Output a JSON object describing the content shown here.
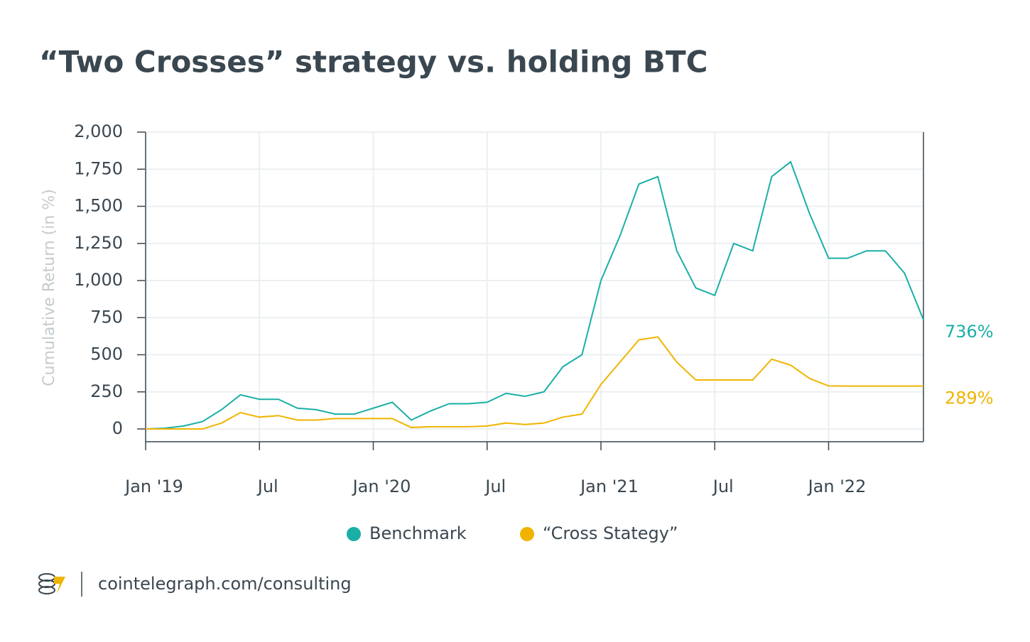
{
  "chart_data": {
    "type": "line",
    "title": "“Two Crosses” strategy vs. holding BTC",
    "y_label": "Cumulative Return (in %)",
    "x": [
      "2019-01",
      "2019-02",
      "2019-03",
      "2019-04",
      "2019-05",
      "2019-06",
      "2019-07",
      "2019-08",
      "2019-09",
      "2019-10",
      "2019-11",
      "2019-12",
      "2020-01",
      "2020-02",
      "2020-03",
      "2020-04",
      "2020-05",
      "2020-06",
      "2020-07",
      "2020-08",
      "2020-09",
      "2020-10",
      "2020-11",
      "2020-12",
      "2021-01",
      "2021-02",
      "2021-03",
      "2021-04",
      "2021-05",
      "2021-06",
      "2021-07",
      "2021-08",
      "2021-09",
      "2021-10",
      "2021-11",
      "2021-12",
      "2022-01",
      "2022-02",
      "2022-03",
      "2022-04",
      "2022-05",
      "2022-06"
    ],
    "series": [
      {
        "name": "Benchmark",
        "color": "#1aafa6",
        "end_label": "736%",
        "values": [
          0,
          5,
          20,
          50,
          130,
          230,
          200,
          200,
          140,
          130,
          100,
          100,
          140,
          180,
          60,
          120,
          170,
          170,
          180,
          240,
          220,
          250,
          420,
          500,
          1000,
          1300,
          1650,
          1700,
          1200,
          950,
          900,
          1250,
          1200,
          1700,
          1800,
          1450,
          1150,
          1150,
          1200,
          1200,
          1050,
          736
        ]
      },
      {
        "name": "“Cross Stategy”",
        "color": "#f0b400",
        "end_label": "289%",
        "values": [
          0,
          0,
          0,
          0,
          40,
          110,
          80,
          90,
          60,
          60,
          70,
          70,
          70,
          70,
          10,
          15,
          15,
          15,
          20,
          40,
          30,
          40,
          80,
          100,
          300,
          450,
          600,
          620,
          450,
          330,
          330,
          330,
          330,
          470,
          430,
          340,
          290,
          289,
          289,
          289,
          289,
          289
        ]
      }
    ],
    "xlim": [
      "2019-01",
      "2022-06"
    ],
    "xticks": [
      {
        "value": "2019-01",
        "label": "Jan '19"
      },
      {
        "value": "2019-07",
        "label": "Jul"
      },
      {
        "value": "2020-01",
        "label": "Jan '20"
      },
      {
        "value": "2020-07",
        "label": "Jul"
      },
      {
        "value": "2021-01",
        "label": "Jan '21"
      },
      {
        "value": "2021-07",
        "label": "Jul"
      },
      {
        "value": "2022-01",
        "label": "Jan '22"
      }
    ],
    "ylim": [
      -86,
      2000
    ],
    "yticks": [
      0,
      250,
      500,
      750,
      {
        "value": 1000,
        "label": "1,000"
      },
      {
        "value": 1250,
        "label": "1,250"
      },
      {
        "value": 1500,
        "label": "1,500"
      },
      {
        "value": 1750,
        "label": "1,750"
      },
      {
        "value": 2000,
        "label": "2,000"
      }
    ],
    "grid": true,
    "source": "cointelegraph.com/consulting"
  }
}
